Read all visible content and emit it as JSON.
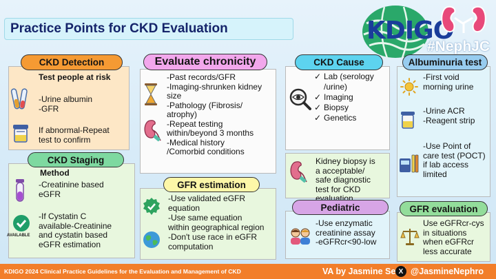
{
  "title": "Practice Points for CKD Evaluation",
  "logo": {
    "brand": "KDIGO",
    "hashtag": "#NephJC"
  },
  "ckd_detection": {
    "label": "CKD Detection",
    "heading": "Test people at risk",
    "tests": "-Urine albumin\n-GFR",
    "followup": "If abnormal-Repeat\ntest to confirm"
  },
  "ckd_staging": {
    "label": "CKD Staging",
    "heading": "Method",
    "method_1": "-Creatinine based\neGFR",
    "method_2": "-If Cystatin C\navailable-Creatinine\nand cystatin based\neGFR estimation",
    "available_label": "AVAILABLE"
  },
  "evaluate_chronicity": {
    "label": "Evaluate chronicity",
    "items": "-Past records/GFR\n-Imaging-shrunken kidney\nsize\n-Pathology (Fibrosis/\natrophy)\n-Repeat testing\nwithin/beyond 3 months\n-Medical history\n/Comorbid conditions"
  },
  "gfr_estimation": {
    "label": "GFR estimation",
    "item_1": "-Use validated eGFR\nequation",
    "item_2": "-Use same equation\nwithin geographical region",
    "item_3": "-Don't use race in eGFR\ncomputation"
  },
  "ckd_cause": {
    "label": "CKD Cause",
    "items": [
      "Lab (serology\n/urine)",
      "Imaging",
      "Biopsy",
      "Genetics"
    ],
    "check_mark": "✓",
    "biopsy_note": "Kidney biopsy is\na acceptable/\nsafe diagnostic\ntest for CKD\nevaluation"
  },
  "pediatric": {
    "label": "Pediatric",
    "items": "-Use enzymatic\ncreatinine assay\n-eGFRcr<90-low"
  },
  "albuminuria_test": {
    "label": "Albuminuria test",
    "item_1": "-First void\nmorning urine",
    "item_2": "-Urine ACR\n-Reagent strip",
    "item_3": "-Use Point of\ncare test (POCT)\nif lab access\nlimited"
  },
  "gfr_evaluation": {
    "label": "GFR evaluation",
    "text": "Use eGFRcr-cys\nin situations\nwhen eGFRcr\nless accurate"
  },
  "footer": {
    "guideline": "KDIGO 2024 Clinical Practice Guidelines for the Evaluation and Management of CKD",
    "author": "VA by Jasmine Sethi",
    "x_glyph": "X",
    "handle": "@JasmineNephro"
  },
  "colors": {
    "accent_orange": "#f27e2a",
    "title_navy": "#15246a",
    "brand_blue": "#1a3d9a"
  }
}
